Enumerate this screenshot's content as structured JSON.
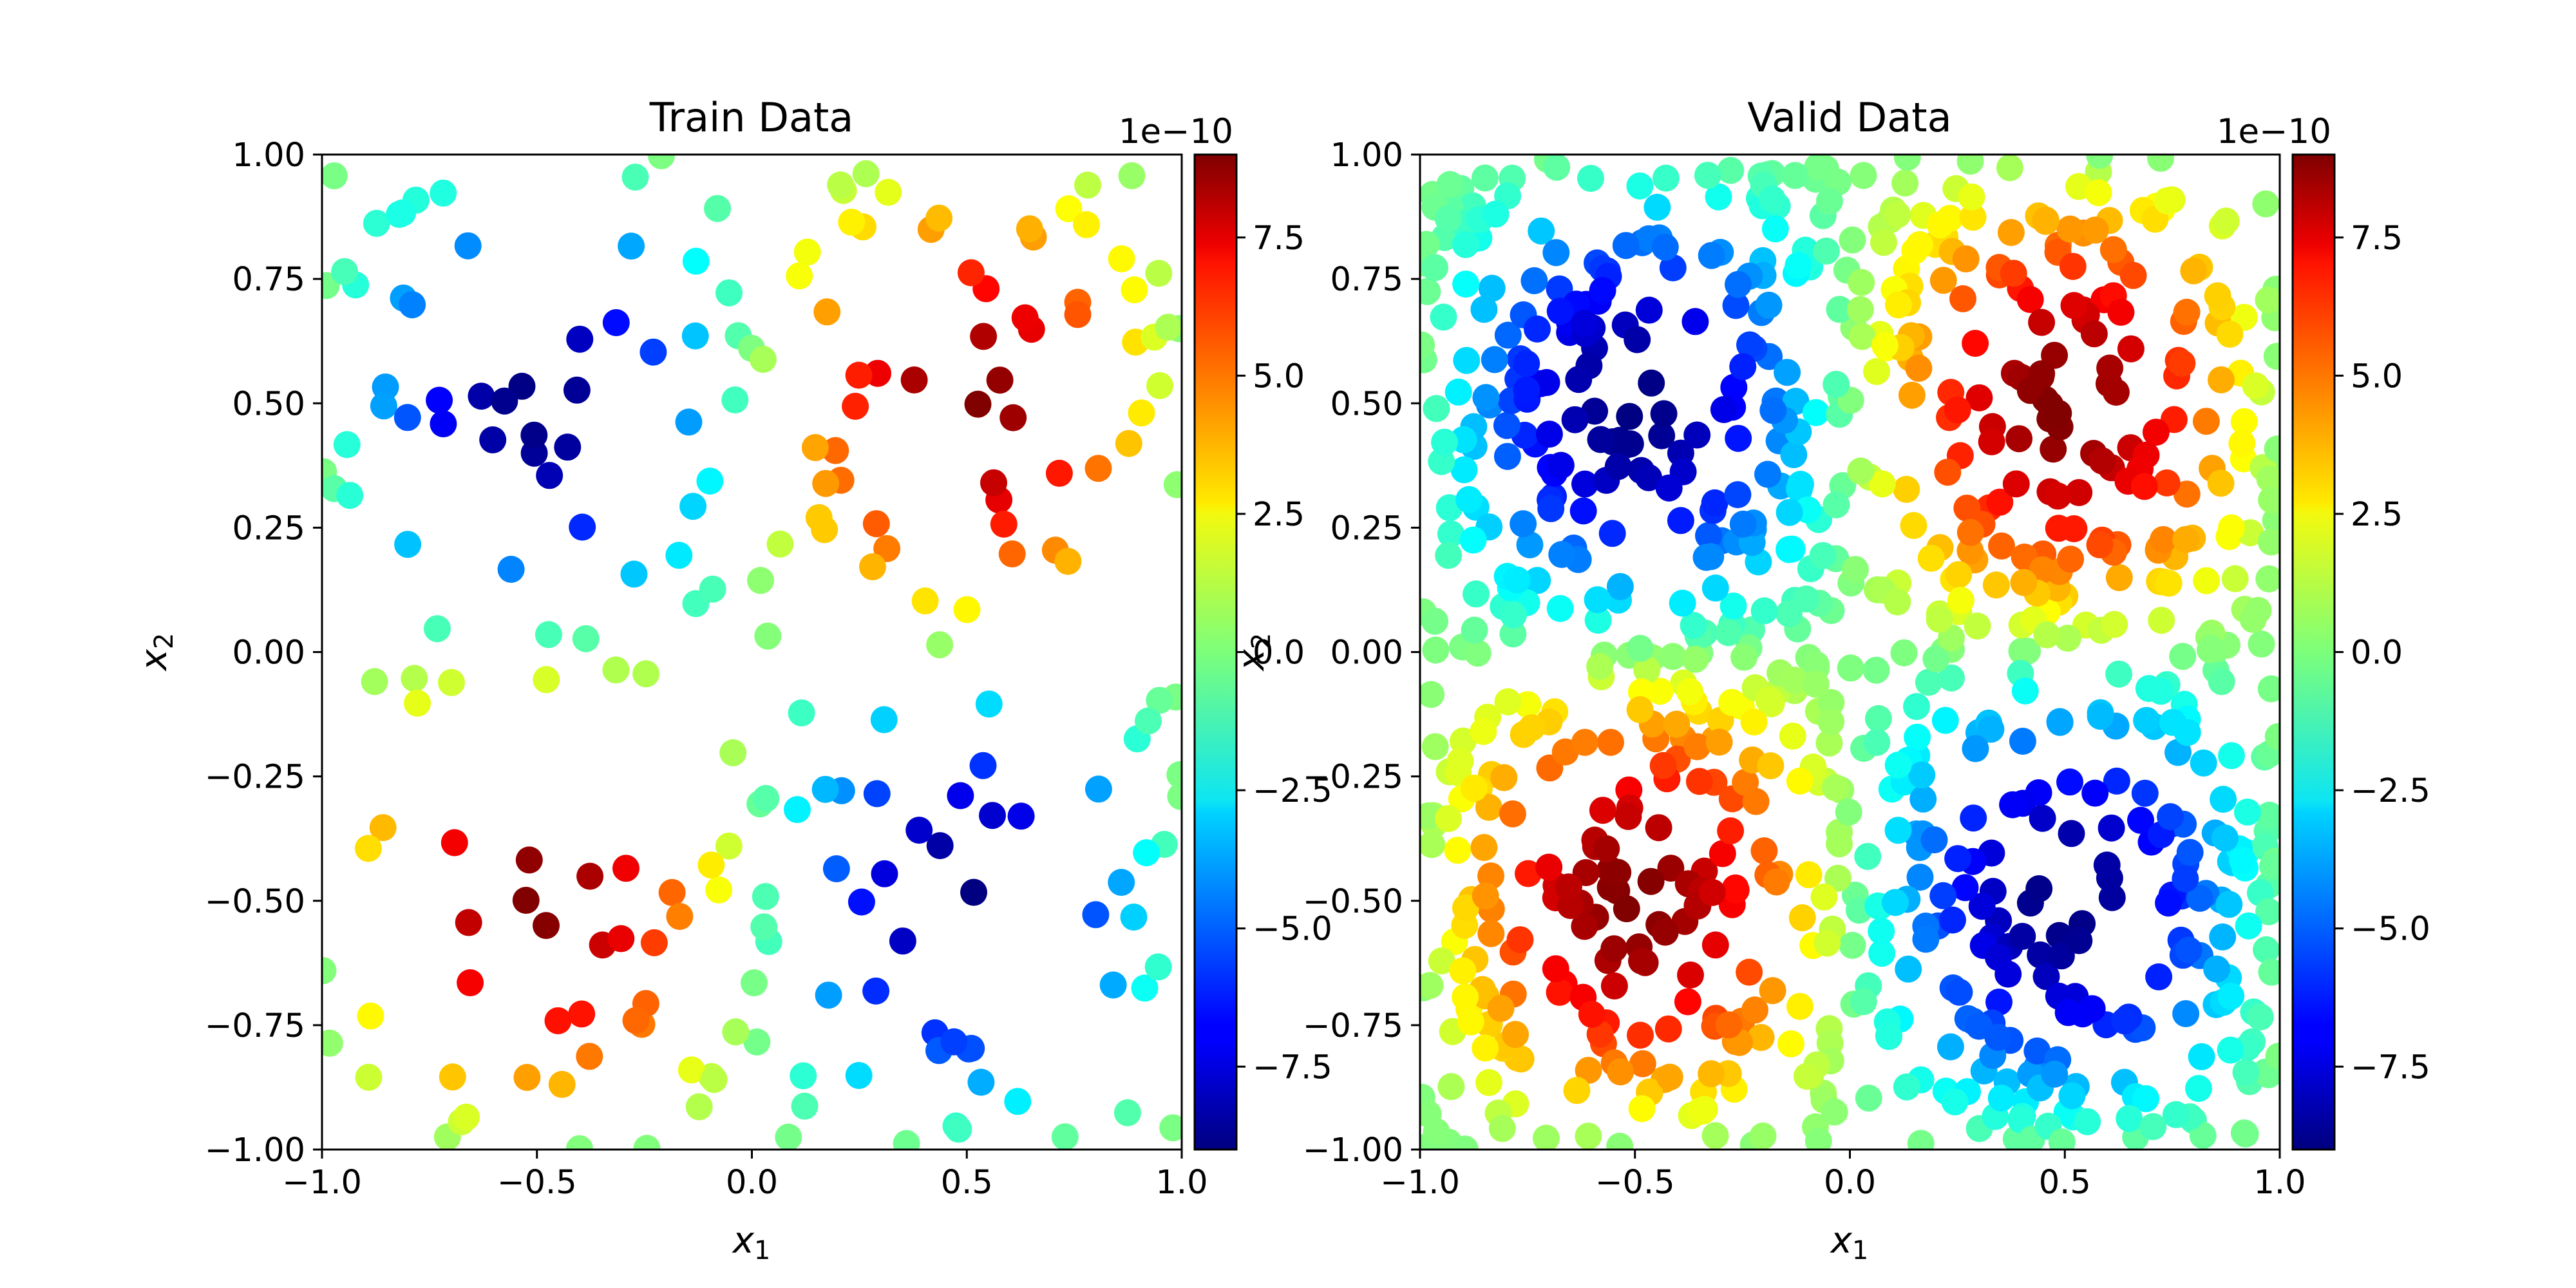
{
  "figure": {
    "panels": [
      {
        "title": "Train Data",
        "xlabel_base": "x",
        "xlabel_sub": "1",
        "ylabel_base": "x",
        "ylabel_sub": "2"
      },
      {
        "title": "Valid Data",
        "xlabel_base": "x",
        "xlabel_sub": "1",
        "ylabel_base": "x",
        "ylabel_sub": "2"
      }
    ],
    "x_ticks": [
      "−1.0",
      "−0.5",
      "0.0",
      "0.5",
      "1.0"
    ],
    "y_ticks": [
      "1.00",
      "0.75",
      "0.50",
      "0.25",
      "0.00",
      "−0.25",
      "−0.50",
      "−0.75",
      "−1.00"
    ],
    "colorbar": {
      "offset_label": "1e−10",
      "ticks": [
        "7.5",
        "5.0",
        "2.5",
        "0.0",
        "−2.5",
        "−5.0",
        "−7.5"
      ]
    }
  },
  "chart_data": [
    {
      "type": "scatter",
      "title": "Train Data",
      "xlabel": "x1",
      "ylabel": "x2",
      "xlim": [
        -1.0,
        1.0
      ],
      "ylim": [
        -1.0,
        1.0
      ],
      "x_ticks": [
        -1.0,
        -0.5,
        0.0,
        0.5,
        1.0
      ],
      "y_ticks": [
        1.0,
        0.75,
        0.5,
        0.25,
        0.0,
        -0.25,
        -0.5,
        -0.75,
        -1.0
      ],
      "colormap": "jet",
      "color_scale": "1e-10",
      "color_range": [
        -9e-10,
        9e-10
      ],
      "colorbar_ticks": [
        7.5,
        5.0,
        2.5,
        0.0,
        -2.5,
        -5.0,
        -7.5
      ],
      "color_formula": "sin(pi*x1)*sin(pi*x2)*9e-10",
      "grid": false,
      "n_points": 230,
      "sampling": "uniform random on [-1,1]x[-1,1]"
    },
    {
      "type": "scatter",
      "title": "Valid Data",
      "xlabel": "x1",
      "ylabel": "x2",
      "xlim": [
        -1.0,
        1.0
      ],
      "ylim": [
        -1.0,
        1.0
      ],
      "x_ticks": [
        -1.0,
        -0.5,
        0.0,
        0.5,
        1.0
      ],
      "y_ticks": [
        1.0,
        0.75,
        0.5,
        0.25,
        0.0,
        -0.25,
        -0.5,
        -0.75,
        -1.0
      ],
      "colormap": "jet",
      "color_scale": "1e-10",
      "color_range": [
        -9e-10,
        9e-10
      ],
      "colorbar_ticks": [
        7.5,
        5.0,
        2.5,
        0.0,
        -2.5,
        -5.0,
        -7.5
      ],
      "color_formula": "sin(pi*x1)*sin(pi*x2)*9e-10",
      "grid": false,
      "n_points": 1000,
      "sampling": "uniform random on [-1,1]x[-1,1]"
    }
  ]
}
